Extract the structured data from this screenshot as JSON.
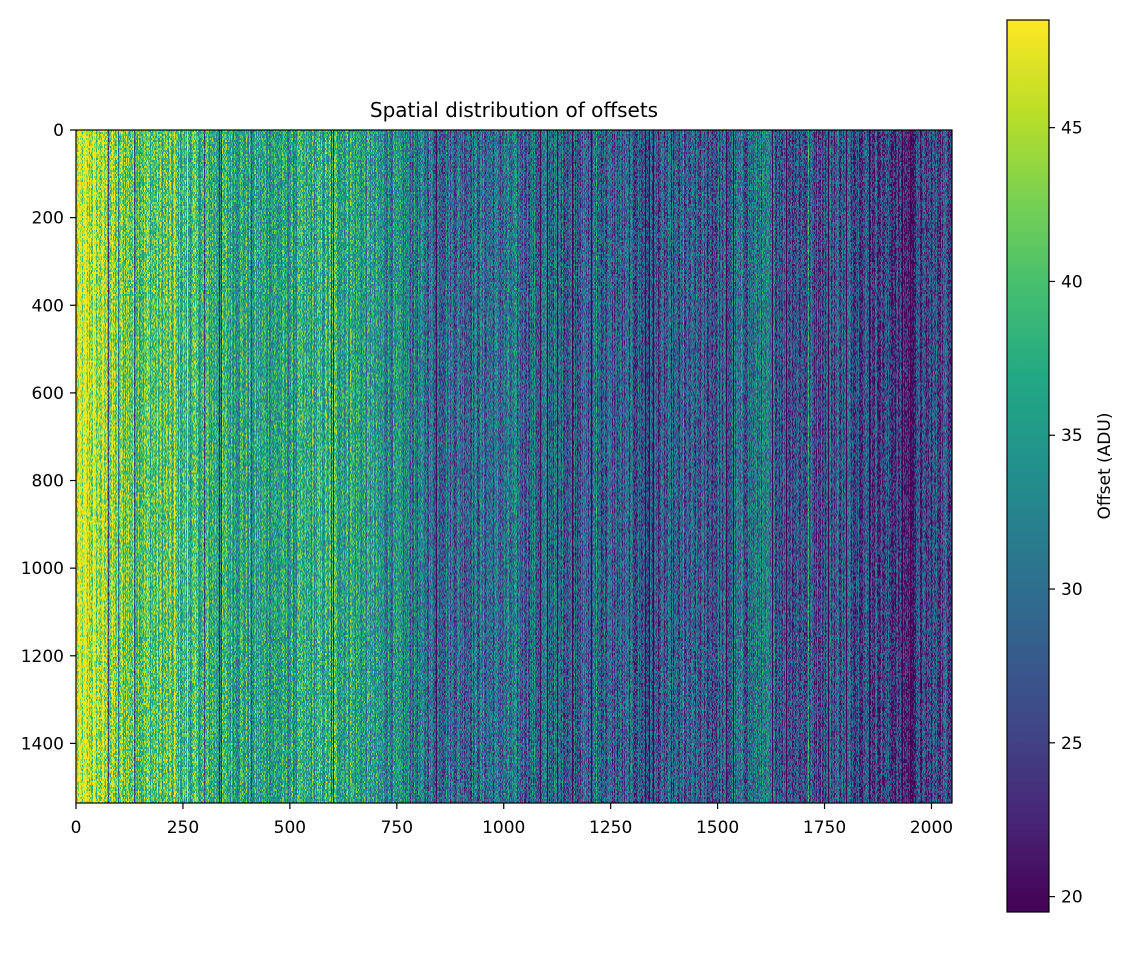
{
  "chart_data": {
    "type": "heatmap",
    "title": "Spatial distribution of offsets",
    "xlabel": "",
    "ylabel": "",
    "xlim": [
      0,
      2048
    ],
    "ylim": [
      1536,
      0
    ],
    "x_ticks": [
      0,
      250,
      500,
      750,
      1000,
      1250,
      1500,
      1750,
      2000
    ],
    "y_ticks": [
      0,
      200,
      400,
      600,
      800,
      1000,
      1200,
      1400
    ],
    "colormap": "viridis",
    "grid": false,
    "colorbar": {
      "label": "Offset (ADU)",
      "range": [
        19.5,
        48.5
      ],
      "ticks": [
        20,
        25,
        30,
        35,
        40,
        45
      ]
    },
    "column_profile": {
      "description": "mean offset (ADU) vs column index; pixels vary per row with column striping",
      "x": [
        0,
        60,
        100,
        200,
        300,
        400,
        500,
        600,
        700,
        800,
        900,
        1000,
        1100,
        1200,
        1300,
        1400,
        1500,
        1600,
        1700,
        1800,
        1900,
        1950,
        2048
      ],
      "values": [
        46,
        44,
        42,
        40,
        38,
        36.5,
        35,
        38,
        34,
        30.5,
        30,
        29.5,
        29,
        28.5,
        27.5,
        26.5,
        27.5,
        29.5,
        27,
        28,
        25,
        23,
        28
      ]
    },
    "dark_columns": [
      75,
      98,
      135,
      300,
      335,
      340,
      410,
      595,
      602,
      842,
      1085,
      1100,
      1125,
      1160,
      1205,
      1330,
      1340,
      1350,
      1520,
      1535,
      1627,
      1660,
      1757,
      1800,
      1855,
      1930,
      1950
    ],
    "bright_columns": [
      20,
      40,
      230,
      260,
      520,
      640,
      690,
      1180,
      1215,
      1420,
      1600,
      1712,
      1970
    ]
  }
}
